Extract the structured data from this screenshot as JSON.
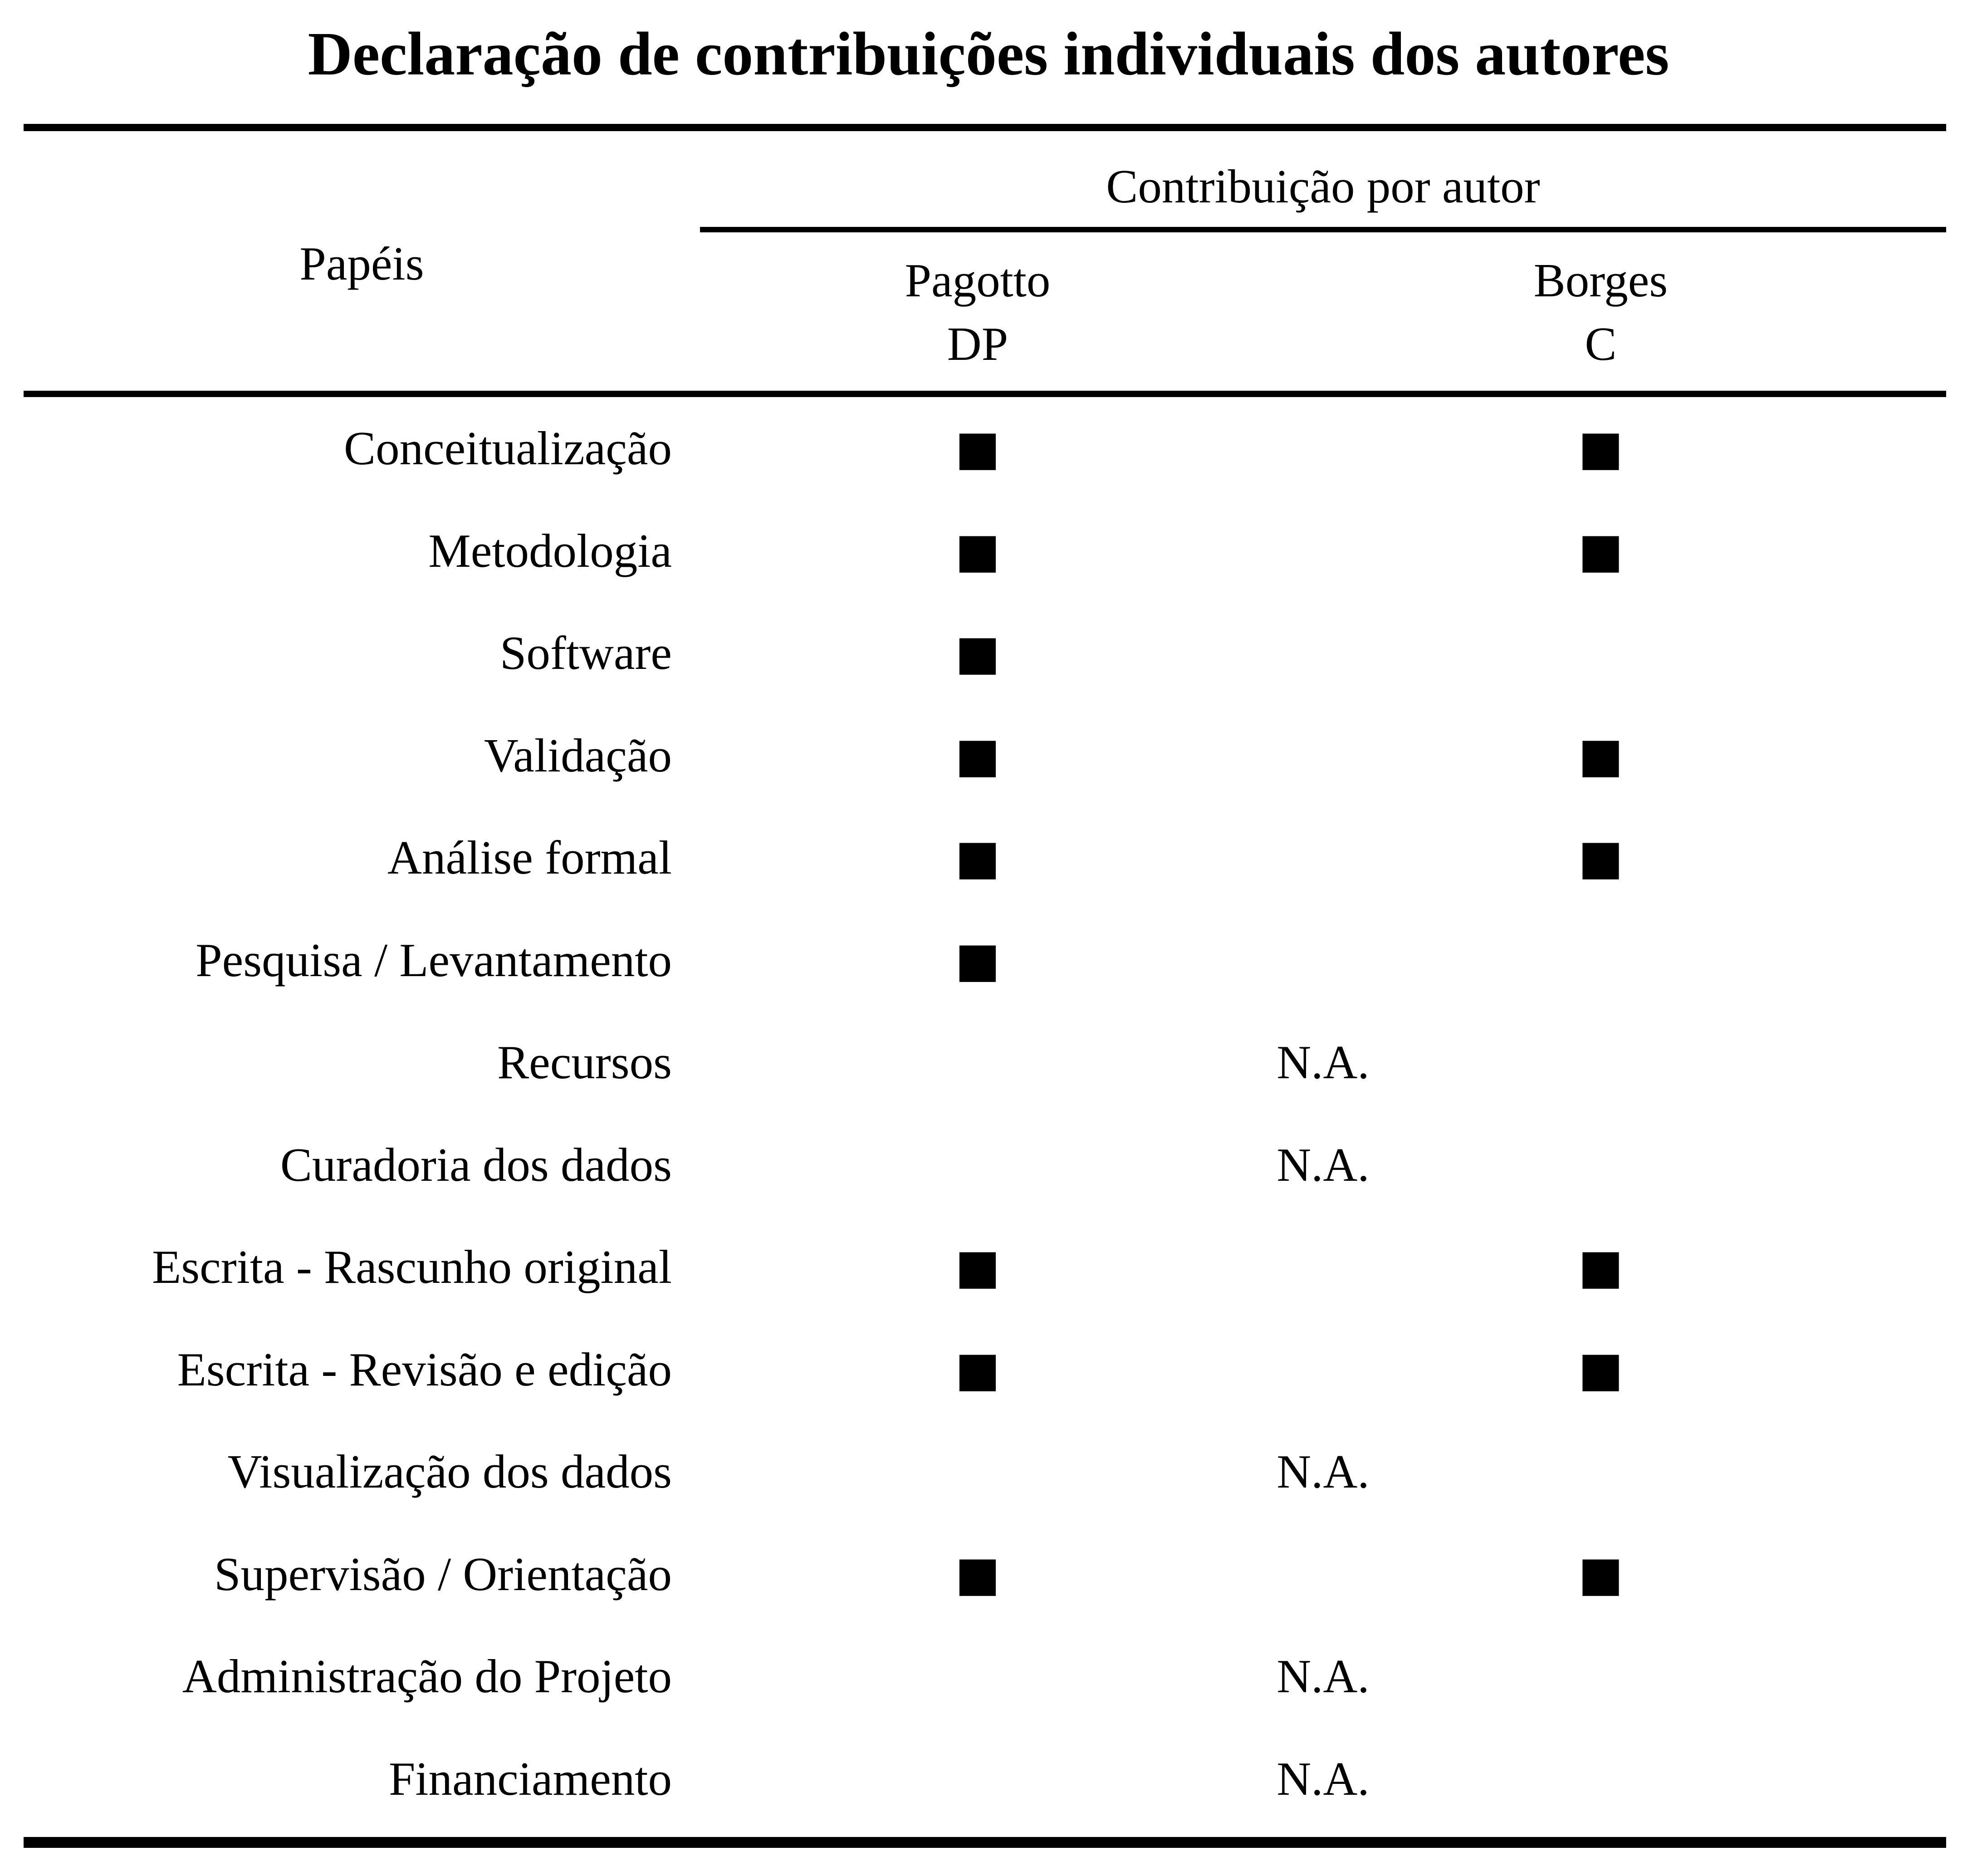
{
  "page": {
    "background_color": "#ffffff",
    "text_color": "#000000"
  },
  "title": "Declaração de contribuições individuais dos autores",
  "table": {
    "roles_column_header": "Papéis",
    "contribution_group_header": "Contribuição por autor",
    "authors": [
      {
        "surname": "Pagotto",
        "initials": "DP"
      },
      {
        "surname": "Borges",
        "initials": "C"
      }
    ],
    "legend": {
      "contributed_marker": "■",
      "not_applicable_label": "N.A."
    },
    "rows": [
      {
        "role": "Conceitualização",
        "pagotto": "■",
        "borges": "■",
        "na": ""
      },
      {
        "role": "Metodologia",
        "pagotto": "■",
        "borges": "■",
        "na": ""
      },
      {
        "role": "Software",
        "pagotto": "■",
        "borges": "",
        "na": ""
      },
      {
        "role": "Validação",
        "pagotto": "■",
        "borges": "■",
        "na": ""
      },
      {
        "role": "Análise formal",
        "pagotto": "■",
        "borges": "■",
        "na": ""
      },
      {
        "role": "Pesquisa / Levantamento",
        "pagotto": "■",
        "borges": "",
        "na": ""
      },
      {
        "role": "Recursos",
        "pagotto": "",
        "borges": "",
        "na": "N.A."
      },
      {
        "role": "Curadoria dos dados",
        "pagotto": "",
        "borges": "",
        "na": "N.A."
      },
      {
        "role": "Escrita - Rascunho original",
        "pagotto": "■",
        "borges": "■",
        "na": ""
      },
      {
        "role": "Escrita - Revisão e edição",
        "pagotto": "■",
        "borges": "■",
        "na": ""
      },
      {
        "role": "Visualização dos dados",
        "pagotto": "",
        "borges": "",
        "na": "N.A."
      },
      {
        "role": "Supervisão / Orientação",
        "pagotto": "■",
        "borges": "■",
        "na": ""
      },
      {
        "role": "Administração do Projeto",
        "pagotto": "",
        "borges": "",
        "na": "N.A."
      },
      {
        "role": "Financiamento",
        "pagotto": "",
        "borges": "",
        "na": "N.A."
      }
    ]
  }
}
